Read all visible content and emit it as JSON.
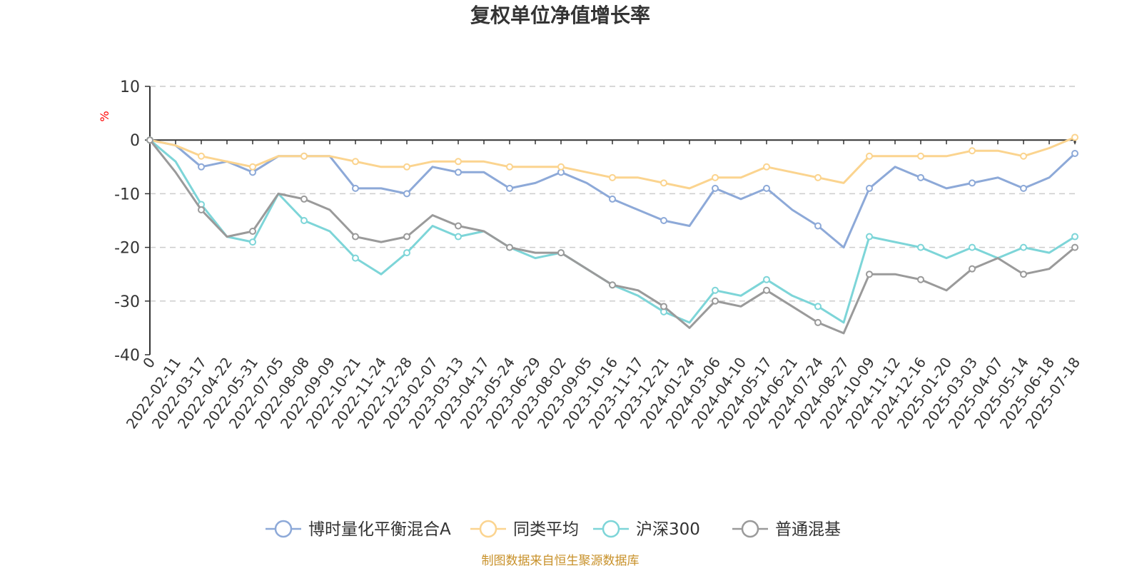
{
  "chart_data": {
    "type": "line",
    "title": "复权单位净值增长率",
    "ylabel": "%",
    "ylim": [
      -40,
      10
    ],
    "yticks": [
      -40,
      -30,
      -20,
      -10,
      0,
      10
    ],
    "grid": true,
    "legend_position": "bottom",
    "x_tick_labels": [
      "0",
      "2022-02-11",
      "2022-03-17",
      "2022-04-22",
      "2022-05-31",
      "2022-07-05",
      "2022-08-08",
      "2022-09-09",
      "2022-10-21",
      "2022-11-24",
      "2022-12-28",
      "2023-02-07",
      "2023-03-13",
      "2023-04-17",
      "2023-05-24",
      "2023-06-29",
      "2023-08-02",
      "2023-09-05",
      "2023-10-16",
      "2023-11-17",
      "2023-12-21",
      "2024-01-24",
      "2024-03-06",
      "2024-04-10",
      "2024-05-17",
      "2024-06-21",
      "2024-07-24",
      "2024-08-27",
      "2024-10-09",
      "2024-11-12",
      "2024-12-16",
      "2025-01-20",
      "2025-03-03",
      "2025-04-07",
      "2025-05-14",
      "2025-06-18",
      "2025-07-18"
    ],
    "source_note": "制图数据来自恒生聚源数据库",
    "series": [
      {
        "name": "博时量化平衡混合A",
        "color": "#8da9d8",
        "values": [
          0,
          -1,
          -5,
          -4,
          -6,
          -3,
          -3,
          -3,
          -9,
          -9,
          -10,
          -5,
          -6,
          -6,
          -9,
          -8,
          -6,
          -8,
          -11,
          -13,
          -15,
          -16,
          -9,
          -11,
          -9,
          -13,
          -16,
          -20,
          -9,
          -5,
          -7,
          -9,
          -8,
          -7,
          -9,
          -7,
          -2.5
        ]
      },
      {
        "name": "同类平均",
        "color": "#fbd48f",
        "values": [
          0,
          -1,
          -3,
          -4,
          -5,
          -3,
          -3,
          -3,
          -4,
          -5,
          -5,
          -4,
          -4,
          -4,
          -5,
          -5,
          -5,
          -6,
          -7,
          -7,
          -8,
          -9,
          -7,
          -7,
          -5,
          -6,
          -7,
          -8,
          -3,
          -3,
          -3,
          -3,
          -2,
          -2,
          -3,
          -1.5,
          0.5
        ]
      },
      {
        "name": "沪深300",
        "color": "#7dd5d8",
        "values": [
          0,
          -4,
          -12,
          -18,
          -19,
          -10,
          -15,
          -17,
          -22,
          -25,
          -21,
          -16,
          -18,
          -17,
          -20,
          -22,
          -21,
          -24,
          -27,
          -29,
          -32,
          -34,
          -28,
          -29,
          -26,
          -29,
          -31,
          -34,
          -18,
          -19,
          -20,
          -22,
          -20,
          -22,
          -20,
          -21,
          -18
        ]
      },
      {
        "name": "普通混基",
        "color": "#9a9a9a",
        "values": [
          0,
          -6,
          -13,
          -18,
          -17,
          -10,
          -11,
          -13,
          -18,
          -19,
          -18,
          -14,
          -16,
          -17,
          -20,
          -21,
          -21,
          -24,
          -27,
          -28,
          -31,
          -35,
          -30,
          -31,
          -28,
          -31,
          -34,
          -36,
          -25,
          -25,
          -26,
          -28,
          -24,
          -22,
          -25,
          -24,
          -20
        ]
      }
    ]
  }
}
